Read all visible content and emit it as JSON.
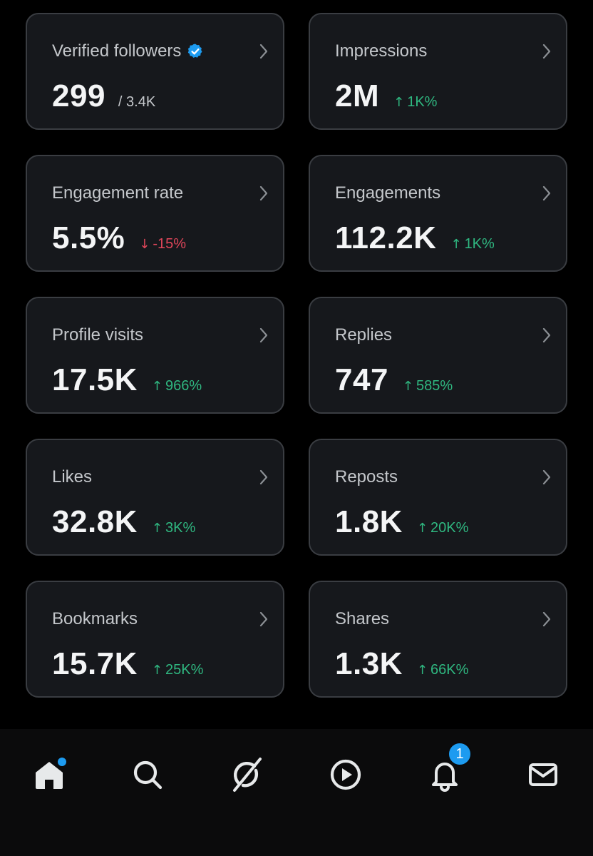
{
  "colors": {
    "background": "#000000",
    "card_bg": "#16181c",
    "card_border": "#3a3d42",
    "positive": "#2fb780",
    "negative": "#e0465a",
    "accent": "#1d9bf0"
  },
  "metrics": [
    {
      "label": "Verified followers",
      "value": "299",
      "sub": "/ 3.4K",
      "verified_icon": "verified-badge-icon"
    },
    {
      "label": "Impressions",
      "value": "2M",
      "arrow": "↑",
      "change": "1K%",
      "direction": "up"
    },
    {
      "label": "Engagement rate",
      "value": "5.5%",
      "arrow": "↓",
      "change": "-15%",
      "direction": "down"
    },
    {
      "label": "Engagements",
      "value": "112.2K",
      "arrow": "↑",
      "change": "1K%",
      "direction": "up"
    },
    {
      "label": "Profile visits",
      "value": "17.5K",
      "arrow": "↑",
      "change": "966%",
      "direction": "up"
    },
    {
      "label": "Replies",
      "value": "747",
      "arrow": "↑",
      "change": "585%",
      "direction": "up"
    },
    {
      "label": "Likes",
      "value": "32.8K",
      "arrow": "↑",
      "change": "3K%",
      "direction": "up"
    },
    {
      "label": "Reposts",
      "value": "1.8K",
      "arrow": "↑",
      "change": "20K%",
      "direction": "up"
    },
    {
      "label": "Bookmarks",
      "value": "15.7K",
      "arrow": "↑",
      "change": "25K%",
      "direction": "up"
    },
    {
      "label": "Shares",
      "value": "1.3K",
      "arrow": "↑",
      "change": "66K%",
      "direction": "up"
    }
  ],
  "nav": {
    "items": [
      {
        "icon": "home-icon",
        "has_dot": true
      },
      {
        "icon": "search-icon"
      },
      {
        "icon": "grok-icon"
      },
      {
        "icon": "video-play-icon"
      },
      {
        "icon": "notifications-bell-icon",
        "badge": "1"
      },
      {
        "icon": "messages-envelope-icon"
      }
    ],
    "notification_badge": "1"
  }
}
